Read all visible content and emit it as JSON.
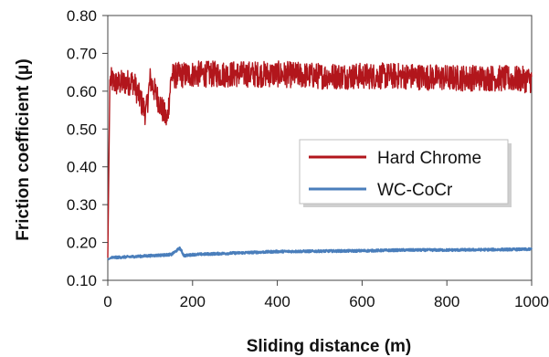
{
  "chart_data": {
    "type": "line",
    "title": "",
    "xlabel": "Sliding distance (m)",
    "ylabel": "Friction coefficient (μ)",
    "xlim": [
      0,
      1000
    ],
    "ylim": [
      0.1,
      0.8
    ],
    "x_ticks": [
      0,
      200,
      400,
      600,
      800,
      1000
    ],
    "x_tick_labels": [
      "0",
      "200",
      "400",
      "600",
      "800",
      "1000"
    ],
    "y_ticks": [
      0.1,
      0.2,
      0.3,
      0.4,
      0.5,
      0.6,
      0.7,
      0.8
    ],
    "y_tick_labels": [
      "0.10",
      "0.20",
      "0.30",
      "0.40",
      "0.50",
      "0.60",
      "0.70",
      "0.80"
    ],
    "grid": false,
    "legend_position": "right-middle",
    "series": [
      {
        "name": "Hard Chrome",
        "color": "#b2161c",
        "noise_amplitude": 0.035,
        "points": [
          [
            0,
            0.16
          ],
          [
            3,
            0.45
          ],
          [
            5,
            0.63
          ],
          [
            20,
            0.62
          ],
          [
            60,
            0.625
          ],
          [
            90,
            0.54
          ],
          [
            100,
            0.63
          ],
          [
            140,
            0.52
          ],
          [
            150,
            0.64
          ],
          [
            200,
            0.645
          ],
          [
            300,
            0.645
          ],
          [
            400,
            0.645
          ],
          [
            500,
            0.64
          ],
          [
            600,
            0.64
          ],
          [
            700,
            0.64
          ],
          [
            800,
            0.635
          ],
          [
            900,
            0.635
          ],
          [
            1000,
            0.63
          ]
        ]
      },
      {
        "name": "WC-CoCr",
        "color": "#4a7ebb",
        "noise_amplitude": 0.003,
        "points": [
          [
            0,
            0.155
          ],
          [
            10,
            0.16
          ],
          [
            50,
            0.162
          ],
          [
            100,
            0.165
          ],
          [
            150,
            0.168
          ],
          [
            170,
            0.185
          ],
          [
            180,
            0.165
          ],
          [
            200,
            0.168
          ],
          [
            300,
            0.172
          ],
          [
            400,
            0.176
          ],
          [
            500,
            0.177
          ],
          [
            600,
            0.178
          ],
          [
            700,
            0.18
          ],
          [
            800,
            0.18
          ],
          [
            900,
            0.181
          ],
          [
            1000,
            0.182
          ]
        ]
      }
    ]
  }
}
